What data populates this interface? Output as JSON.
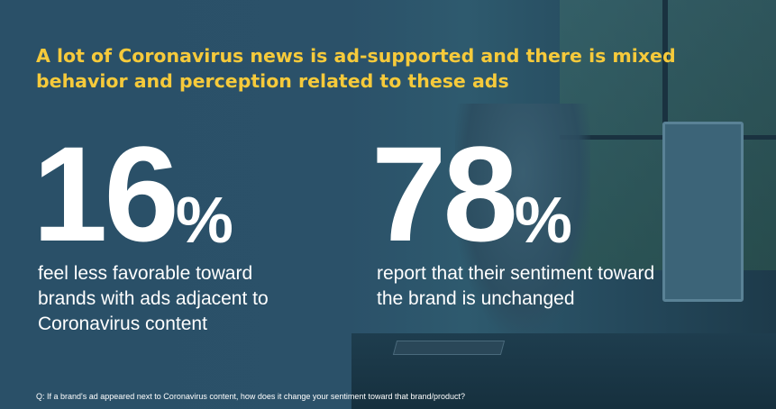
{
  "title": "A lot of Coronavirus news is ad-supported and there is mixed behavior and perception related to these ads",
  "stats": [
    {
      "number": "16",
      "unit": "%",
      "description": "feel less favorable toward brands with ads adjacent to Coronavirus content"
    },
    {
      "number": "78",
      "unit": "%",
      "description": "report that their sentiment toward the brand is unchanged"
    }
  ],
  "footnote": "Q: If a brand's ad appeared next to Coronavirus content, how does it change your sentiment toward that brand/product?",
  "colors": {
    "background": "#2a5068",
    "accent": "#f6ca3b",
    "text": "#ffffff"
  }
}
